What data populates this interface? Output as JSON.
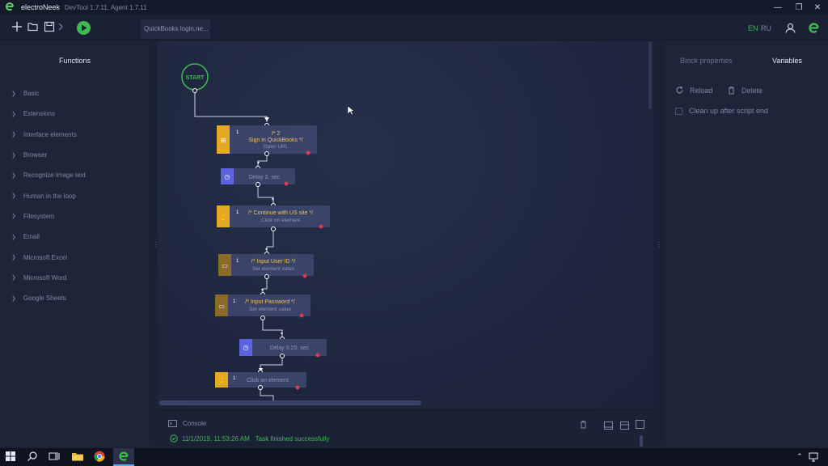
{
  "window": {
    "app_name": "electroNeek",
    "version": "DevTool 1.7.11, Agent 1.7.11",
    "controls": [
      "—",
      "❐",
      "✕"
    ]
  },
  "toolbar": {
    "icons": [
      "plus-icon",
      "folder-icon",
      "save-icon",
      "chevron-right-icon",
      "play-icon"
    ],
    "tab_label": "QuickBooks login.ne...",
    "lang_en": "EN",
    "lang_ru": "RU"
  },
  "functions": {
    "title": "Functions",
    "items": [
      "Basic",
      "Extensions",
      "Interface elements",
      "Browser",
      "Recognize image text",
      "Human in the loop",
      "Filesystem",
      "Email",
      "Microsoft Excel",
      "Microsoft Word",
      "Google Sheets"
    ]
  },
  "flow": {
    "start_label": "START",
    "blocks": [
      {
        "num": "1",
        "title": "/* 2\nSign in QuickBooks */",
        "title_line1": "/* 2",
        "title_line2": "Sign in QuickBooks */",
        "subtitle": "Open URL",
        "icon": "browser-icon",
        "color": "#e5a823"
      },
      {
        "num": "",
        "title": "",
        "subtitle": "Delay 2. sec",
        "icon": "clock-icon",
        "color": "#5b63e0"
      },
      {
        "num": "1",
        "title": "/* Continue with US site */",
        "subtitle": "Click on element",
        "icon": "click-icon",
        "color": "#e5a823"
      },
      {
        "num": "1",
        "title": "/* Input User ID */",
        "subtitle": "Set element value",
        "icon": "input-icon",
        "color": "#8c6a2a"
      },
      {
        "num": "1",
        "title": "/* Input Password */",
        "subtitle": "Set element value",
        "icon": "input-icon",
        "color": "#8c6a2a"
      },
      {
        "num": "",
        "title": "",
        "subtitle": "Delay 0.25. sec",
        "icon": "clock-icon",
        "color": "#5b63e0"
      },
      {
        "num": "1",
        "title": "",
        "subtitle": "Click on element",
        "icon": "click-icon",
        "color": "#e5a823"
      }
    ]
  },
  "right_panel": {
    "tab_block_properties": "Block properties",
    "tab_variables": "Variables",
    "reload": "Reload",
    "delete": "Delete",
    "cleanup": "Clean up after script end"
  },
  "console": {
    "label": "Console",
    "timestamp": "11/1/2019, 11:53:26 AM",
    "message": "Task finished successfully"
  },
  "colors": {
    "accent_green": "#3fb950",
    "brand_green": "#5fd06b",
    "port_red": "#e0394f",
    "title_yellow": "#f0c060"
  }
}
